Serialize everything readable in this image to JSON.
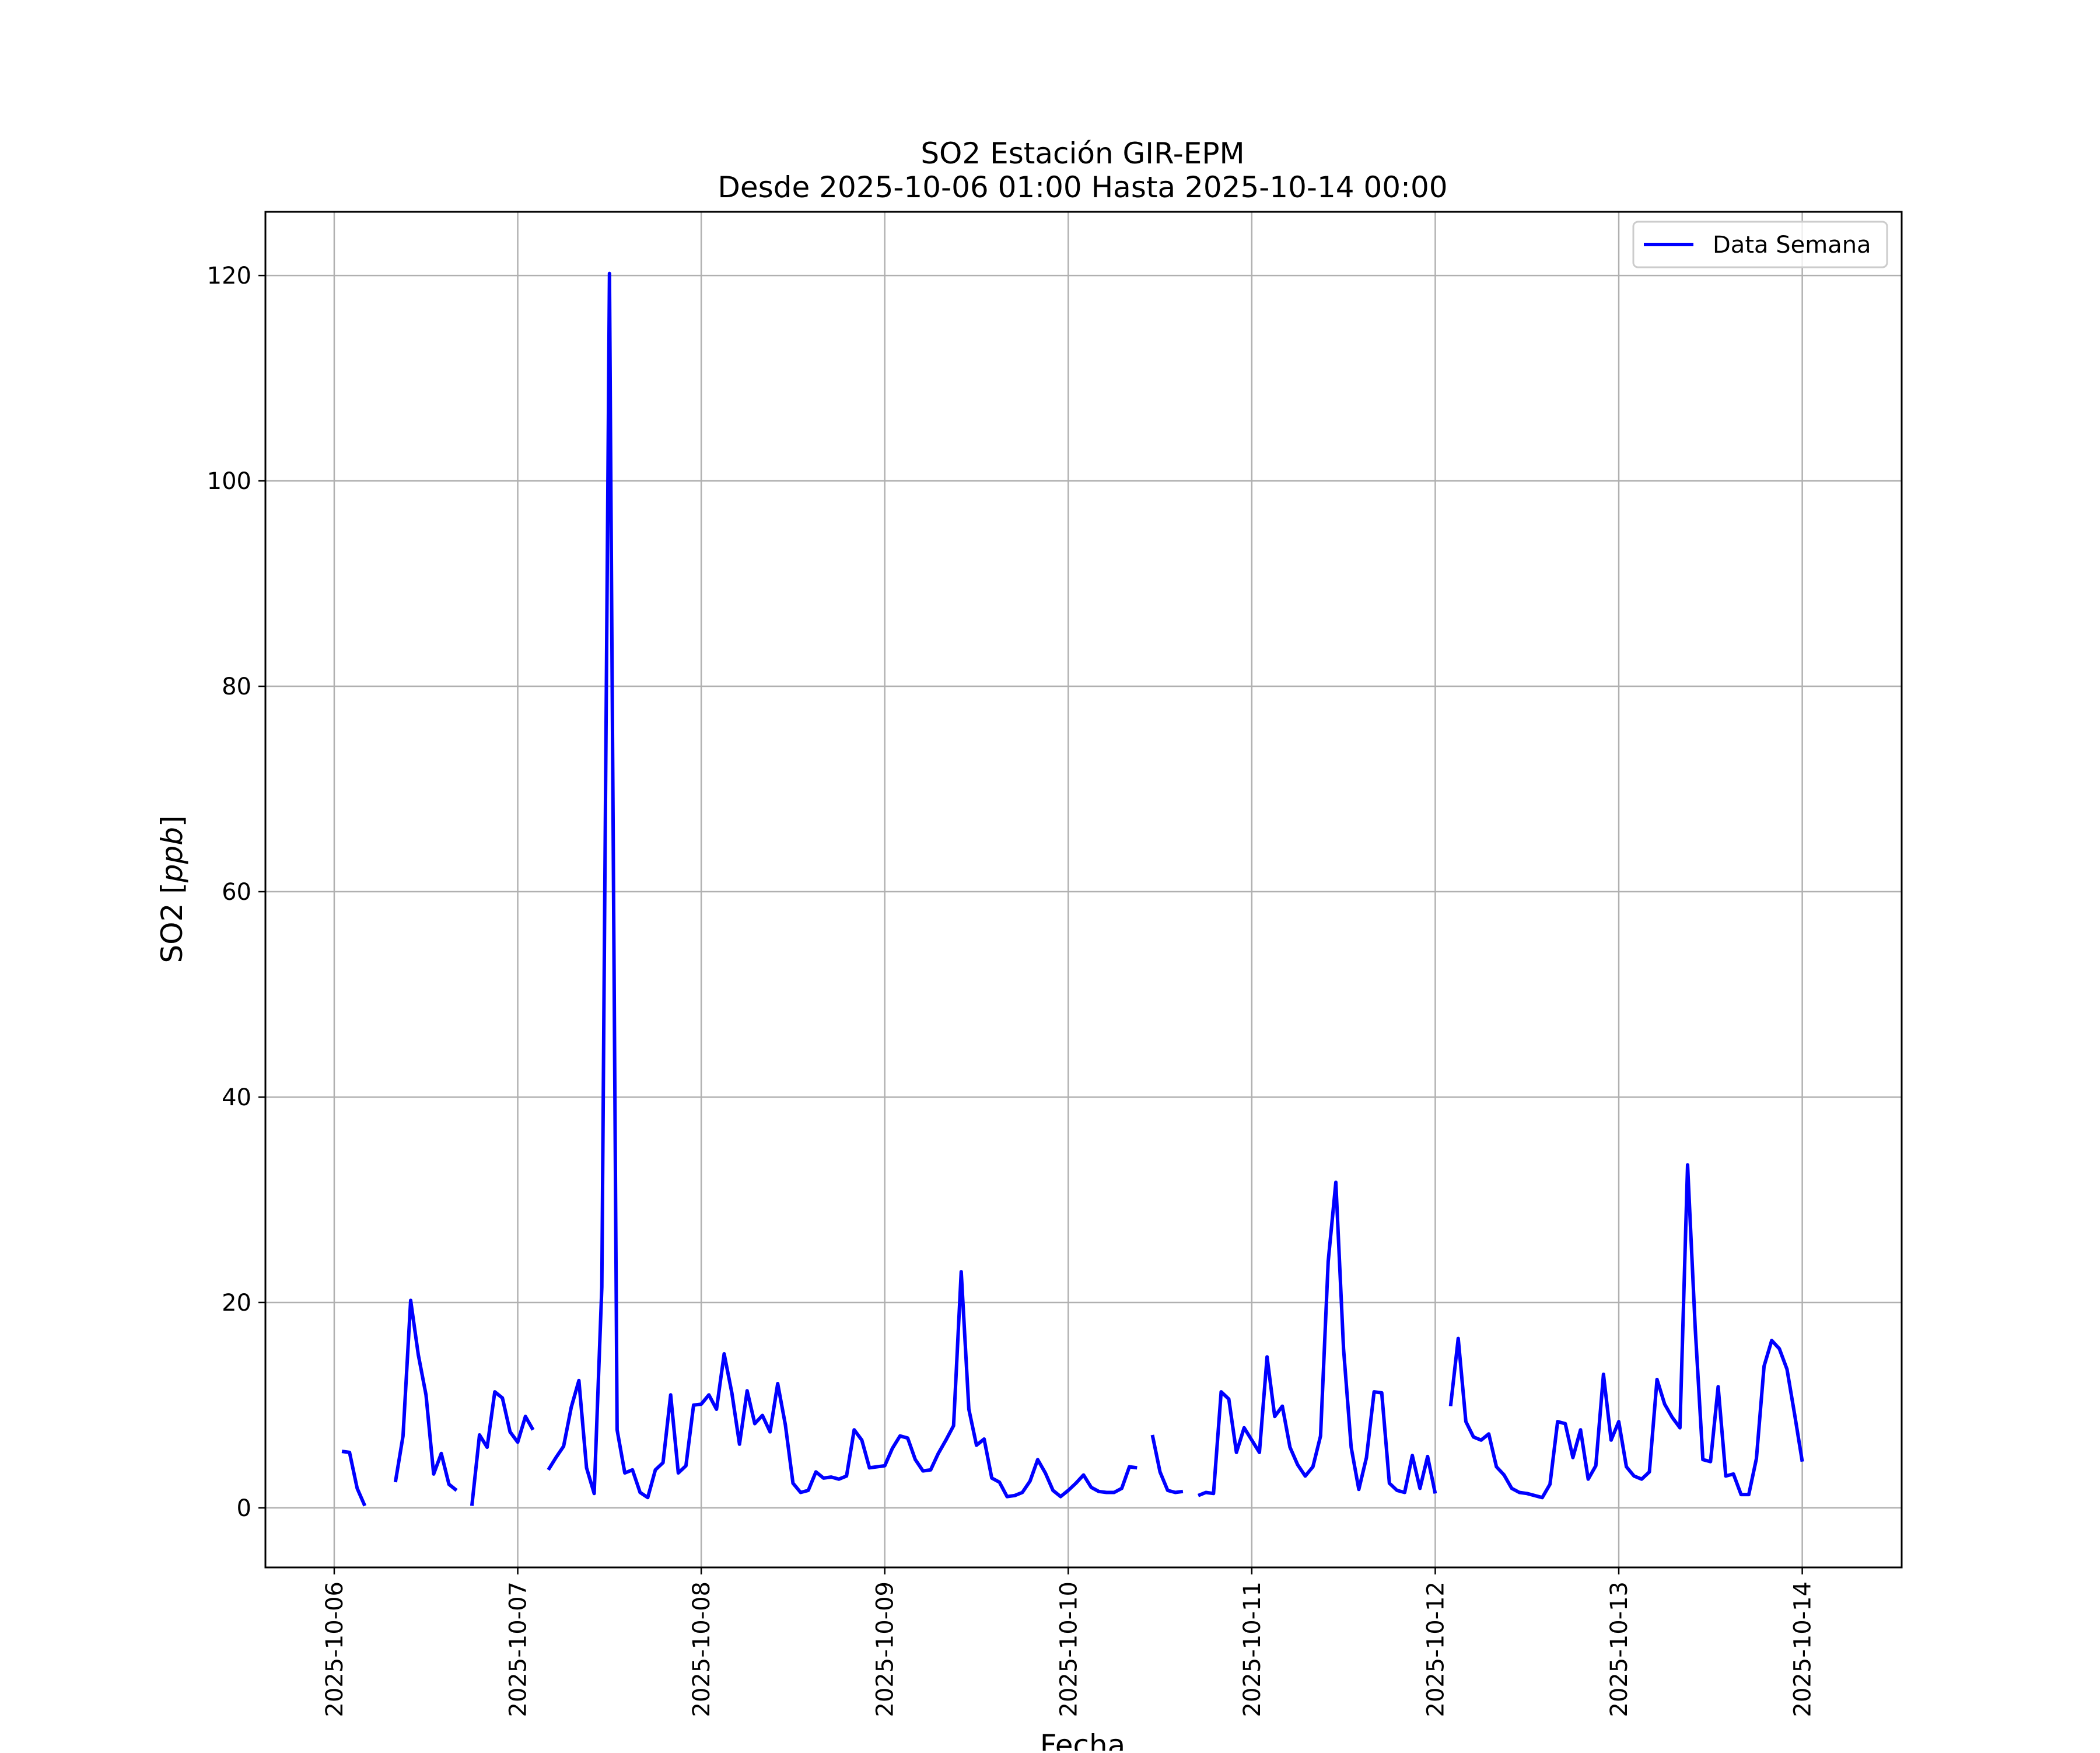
{
  "chart_data": {
    "type": "line",
    "title": "SO2 Estación GIR-EPM",
    "subtitle": "Desde 2025-10-06 01:00 Hasta 2025-10-14 00:00",
    "xlabel": "Fecha",
    "ylabel_main": "SO2 [",
    "ylabel_unit": "ppb",
    "ylabel_end": "]",
    "x_tick_labels": [
      "2025-10-06",
      "2025-10-07",
      "2025-10-08",
      "2025-10-09",
      "2025-10-10",
      "2025-10-11",
      "2025-10-12",
      "2025-10-13",
      "2025-10-14"
    ],
    "y_ticks": [
      0,
      20,
      40,
      60,
      80,
      100,
      120
    ],
    "xlim": [
      "2025-10-05T15:00",
      "2025-10-14T13:00"
    ],
    "ylim": [
      -5.8,
      126.2
    ],
    "grid": true,
    "legend_position": "top-right",
    "line_color": "#0000ff",
    "series": [
      {
        "name": "Data Semana",
        "points": [
          [
            "2025-10-06T01:00",
            5.5
          ],
          [
            "2025-10-06T02:00",
            5.4
          ],
          [
            "2025-10-06T03:00",
            1.9
          ],
          [
            "2025-10-06T04:00",
            0.2
          ],
          [
            "2025-10-06T05:00",
            null
          ],
          [
            "2025-10-06T06:00",
            null
          ],
          [
            "2025-10-06T07:00",
            null
          ],
          [
            "2025-10-06T08:00",
            2.5
          ],
          [
            "2025-10-06T09:00",
            7.0
          ],
          [
            "2025-10-06T10:00",
            20.2
          ],
          [
            "2025-10-06T11:00",
            14.9
          ],
          [
            "2025-10-06T12:00",
            11.0
          ],
          [
            "2025-10-06T13:00",
            3.3
          ],
          [
            "2025-10-06T14:00",
            5.3
          ],
          [
            "2025-10-06T15:00",
            2.3
          ],
          [
            "2025-10-06T16:00",
            1.7
          ],
          [
            "2025-10-06T17:00",
            null
          ],
          [
            "2025-10-06T18:00",
            0.2
          ],
          [
            "2025-10-06T19:00",
            7.1
          ],
          [
            "2025-10-06T20:00",
            5.9
          ],
          [
            "2025-10-06T21:00",
            11.3
          ],
          [
            "2025-10-06T22:00",
            10.7
          ],
          [
            "2025-10-06T23:00",
            7.4
          ],
          [
            "2025-10-07T00:00",
            6.4
          ],
          [
            "2025-10-07T01:00",
            8.9
          ],
          [
            "2025-10-07T02:00",
            7.6
          ],
          [
            "2025-10-07T03:00",
            null
          ],
          [
            "2025-10-07T04:00",
            3.7
          ],
          [
            "2025-10-07T05:00",
            4.9
          ],
          [
            "2025-10-07T06:00",
            6.0
          ],
          [
            "2025-10-07T07:00",
            9.8
          ],
          [
            "2025-10-07T08:00",
            12.4
          ],
          [
            "2025-10-07T09:00",
            3.9
          ],
          [
            "2025-10-07T10:00",
            1.4
          ],
          [
            "2025-10-07T11:00",
            21.5
          ],
          [
            "2025-10-07T12:00",
            120.2
          ],
          [
            "2025-10-07T13:00",
            7.6
          ],
          [
            "2025-10-07T14:00",
            3.4
          ],
          [
            "2025-10-07T15:00",
            3.7
          ],
          [
            "2025-10-07T16:00",
            1.5
          ],
          [
            "2025-10-07T17:00",
            1.0
          ],
          [
            "2025-10-07T18:00",
            3.7
          ],
          [
            "2025-10-07T19:00",
            4.4
          ],
          [
            "2025-10-07T20:00",
            11.0
          ],
          [
            "2025-10-07T21:00",
            3.4
          ],
          [
            "2025-10-07T22:00",
            4.1
          ],
          [
            "2025-10-07T23:00",
            10.0
          ],
          [
            "2025-10-08T00:00",
            10.1
          ],
          [
            "2025-10-08T01:00",
            11.0
          ],
          [
            "2025-10-08T02:00",
            9.6
          ],
          [
            "2025-10-08T03:00",
            15.0
          ],
          [
            "2025-10-08T04:00",
            11.2
          ],
          [
            "2025-10-08T05:00",
            6.2
          ],
          [
            "2025-10-08T06:00",
            11.4
          ],
          [
            "2025-10-08T07:00",
            8.2
          ],
          [
            "2025-10-08T08:00",
            9.0
          ],
          [
            "2025-10-08T09:00",
            7.4
          ],
          [
            "2025-10-08T10:00",
            12.1
          ],
          [
            "2025-10-08T11:00",
            8.1
          ],
          [
            "2025-10-08T12:00",
            2.4
          ],
          [
            "2025-10-08T13:00",
            1.5
          ],
          [
            "2025-10-08T14:00",
            1.7
          ],
          [
            "2025-10-08T15:00",
            3.5
          ],
          [
            "2025-10-08T16:00",
            2.9
          ],
          [
            "2025-10-08T17:00",
            3.0
          ],
          [
            "2025-10-08T18:00",
            2.8
          ],
          [
            "2025-10-08T19:00",
            3.1
          ],
          [
            "2025-10-08T20:00",
            7.6
          ],
          [
            "2025-10-08T21:00",
            6.6
          ],
          [
            "2025-10-08T22:00",
            3.9
          ],
          [
            "2025-10-08T23:00",
            4.0
          ],
          [
            "2025-10-09T00:00",
            4.1
          ],
          [
            "2025-10-09T01:00",
            5.8
          ],
          [
            "2025-10-09T02:00",
            7.0
          ],
          [
            "2025-10-09T03:00",
            6.8
          ],
          [
            "2025-10-09T04:00",
            4.7
          ],
          [
            "2025-10-09T05:00",
            3.6
          ],
          [
            "2025-10-09T06:00",
            3.7
          ],
          [
            "2025-10-09T07:00",
            5.3
          ],
          [
            "2025-10-09T08:00",
            6.6
          ],
          [
            "2025-10-09T09:00",
            8.0
          ],
          [
            "2025-10-09T10:00",
            23.0
          ],
          [
            "2025-10-09T11:00",
            9.6
          ],
          [
            "2025-10-09T12:00",
            6.1
          ],
          [
            "2025-10-09T13:00",
            6.7
          ],
          [
            "2025-10-09T14:00",
            2.9
          ],
          [
            "2025-10-09T15:00",
            2.5
          ],
          [
            "2025-10-09T16:00",
            1.1
          ],
          [
            "2025-10-09T17:00",
            1.2
          ],
          [
            "2025-10-09T18:00",
            1.5
          ],
          [
            "2025-10-09T19:00",
            2.6
          ],
          [
            "2025-10-09T20:00",
            4.7
          ],
          [
            "2025-10-09T21:00",
            3.4
          ],
          [
            "2025-10-09T22:00",
            1.7
          ],
          [
            "2025-10-09T23:00",
            1.1
          ],
          [
            "2025-10-10T00:00",
            1.7
          ],
          [
            "2025-10-10T01:00",
            2.4
          ],
          [
            "2025-10-10T02:00",
            3.2
          ],
          [
            "2025-10-10T03:00",
            2.0
          ],
          [
            "2025-10-10T04:00",
            1.6
          ],
          [
            "2025-10-10T05:00",
            1.5
          ],
          [
            "2025-10-10T06:00",
            1.5
          ],
          [
            "2025-10-10T07:00",
            1.9
          ],
          [
            "2025-10-10T08:00",
            4.0
          ],
          [
            "2025-10-10T09:00",
            3.9
          ],
          [
            "2025-10-10T10:00",
            null
          ],
          [
            "2025-10-10T11:00",
            7.1
          ],
          [
            "2025-10-10T12:00",
            3.5
          ],
          [
            "2025-10-10T13:00",
            1.7
          ],
          [
            "2025-10-10T14:00",
            1.5
          ],
          [
            "2025-10-10T15:00",
            1.6
          ],
          [
            "2025-10-10T16:00",
            null
          ],
          [
            "2025-10-10T17:00",
            1.2
          ],
          [
            "2025-10-10T18:00",
            1.5
          ],
          [
            "2025-10-10T19:00",
            1.4
          ],
          [
            "2025-10-10T20:00",
            11.3
          ],
          [
            "2025-10-10T21:00",
            10.6
          ],
          [
            "2025-10-10T22:00",
            5.4
          ],
          [
            "2025-10-10T23:00",
            7.8
          ],
          [
            "2025-10-11T00:00",
            6.6
          ],
          [
            "2025-10-11T01:00",
            5.4
          ],
          [
            "2025-10-11T02:00",
            14.7
          ],
          [
            "2025-10-11T03:00",
            8.9
          ],
          [
            "2025-10-11T04:00",
            9.9
          ],
          [
            "2025-10-11T05:00",
            5.9
          ],
          [
            "2025-10-11T06:00",
            4.2
          ],
          [
            "2025-10-11T07:00",
            3.1
          ],
          [
            "2025-10-11T08:00",
            4.0
          ],
          [
            "2025-10-11T09:00",
            7.0
          ],
          [
            "2025-10-11T10:00",
            24.0
          ],
          [
            "2025-10-11T11:00",
            31.7
          ],
          [
            "2025-10-11T12:00",
            15.5
          ],
          [
            "2025-10-11T13:00",
            5.9
          ],
          [
            "2025-10-11T14:00",
            1.8
          ],
          [
            "2025-10-11T15:00",
            4.9
          ],
          [
            "2025-10-11T16:00",
            11.3
          ],
          [
            "2025-10-11T17:00",
            11.2
          ],
          [
            "2025-10-11T18:00",
            2.4
          ],
          [
            "2025-10-11T19:00",
            1.7
          ],
          [
            "2025-10-11T20:00",
            1.5
          ],
          [
            "2025-10-11T21:00",
            5.1
          ],
          [
            "2025-10-11T22:00",
            1.9
          ],
          [
            "2025-10-11T23:00",
            5.0
          ],
          [
            "2025-10-12T00:00",
            1.4
          ],
          [
            "2025-10-12T01:00",
            null
          ],
          [
            "2025-10-12T02:00",
            9.9
          ],
          [
            "2025-10-12T03:00",
            16.5
          ],
          [
            "2025-10-12T04:00",
            8.4
          ],
          [
            "2025-10-12T05:00",
            6.9
          ],
          [
            "2025-10-12T06:00",
            6.6
          ],
          [
            "2025-10-12T07:00",
            7.2
          ],
          [
            "2025-10-12T08:00",
            4.0
          ],
          [
            "2025-10-12T09:00",
            3.2
          ],
          [
            "2025-10-12T10:00",
            1.9
          ],
          [
            "2025-10-12T11:00",
            1.5
          ],
          [
            "2025-10-12T12:00",
            1.4
          ],
          [
            "2025-10-12T13:00",
            1.2
          ],
          [
            "2025-10-12T14:00",
            1.0
          ],
          [
            "2025-10-12T15:00",
            2.3
          ],
          [
            "2025-10-12T16:00",
            8.4
          ],
          [
            "2025-10-12T17:00",
            8.2
          ],
          [
            "2025-10-12T18:00",
            4.9
          ],
          [
            "2025-10-12T19:00",
            7.6
          ],
          [
            "2025-10-12T20:00",
            2.8
          ],
          [
            "2025-10-12T21:00",
            4.1
          ],
          [
            "2025-10-12T22:00",
            13.0
          ],
          [
            "2025-10-12T23:00",
            6.6
          ],
          [
            "2025-10-13T00:00",
            8.4
          ],
          [
            "2025-10-13T01:00",
            4.0
          ],
          [
            "2025-10-13T02:00",
            3.1
          ],
          [
            "2025-10-13T03:00",
            2.8
          ],
          [
            "2025-10-13T04:00",
            3.5
          ],
          [
            "2025-10-13T05:00",
            12.5
          ],
          [
            "2025-10-13T06:00",
            10.1
          ],
          [
            "2025-10-13T07:00",
            8.8
          ],
          [
            "2025-10-13T08:00",
            7.8
          ],
          [
            "2025-10-13T09:00",
            33.4
          ],
          [
            "2025-10-13T10:00",
            17.5
          ],
          [
            "2025-10-13T11:00",
            4.7
          ],
          [
            "2025-10-13T12:00",
            4.5
          ],
          [
            "2025-10-13T13:00",
            11.8
          ],
          [
            "2025-10-13T14:00",
            3.1
          ],
          [
            "2025-10-13T15:00",
            3.3
          ],
          [
            "2025-10-13T16:00",
            1.3
          ],
          [
            "2025-10-13T17:00",
            1.3
          ],
          [
            "2025-10-13T18:00",
            4.8
          ],
          [
            "2025-10-13T19:00",
            13.8
          ],
          [
            "2025-10-13T20:00",
            16.3
          ],
          [
            "2025-10-13T21:00",
            15.5
          ],
          [
            "2025-10-13T22:00",
            13.5
          ],
          [
            "2025-10-13T23:00",
            9.1
          ],
          [
            "2025-10-14T00:00",
            4.5
          ]
        ]
      }
    ]
  }
}
